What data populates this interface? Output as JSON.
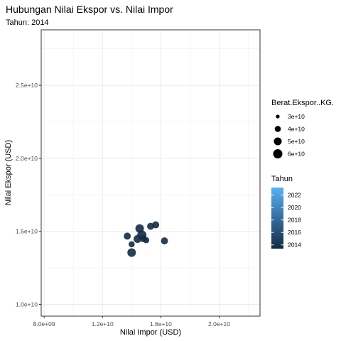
{
  "chart_data": {
    "type": "scatter",
    "title": "Hubungan Nilai Ekspor vs. Nilai Impor",
    "subtitle": "Tahun: 2014",
    "xlabel": "Nilai Impor (USD)",
    "ylabel": "Nilai Ekspor (USD)",
    "xlim": [
      7800000000.0,
      22800000000.0
    ],
    "ylim": [
      9200000000.0,
      28800000000.0
    ],
    "x_ticks": [
      8000000000.0,
      12000000000.0,
      16000000000.0,
      20000000000.0
    ],
    "x_tick_labels": [
      "8.0e+09",
      "1.2e+10",
      "1.6e+10",
      "2.0e+10"
    ],
    "y_ticks": [
      10000000000.0,
      15000000000.0,
      20000000000.0,
      25000000000.0
    ],
    "y_tick_labels": [
      "1.0e+10",
      "1.5e+10",
      "2.0e+10",
      "2.5e+10"
    ],
    "grid": true,
    "points": [
      {
        "x": 13700000000.0,
        "y": 14680000000.0,
        "size": 45000000000.0,
        "year": 2014
      },
      {
        "x": 14000000000.0,
        "y": 14120000000.0,
        "size": 40000000000.0,
        "year": 2014
      },
      {
        "x": 14000000000.0,
        "y": 13550000000.0,
        "size": 55000000000.0,
        "year": 2014
      },
      {
        "x": 14400000000.0,
        "y": 14480000000.0,
        "size": 50000000000.0,
        "year": 2014
      },
      {
        "x": 14550000000.0,
        "y": 15200000000.0,
        "size": 55000000000.0,
        "year": 2014
      },
      {
        "x": 14700000000.0,
        "y": 14750000000.0,
        "size": 60000000000.0,
        "year": 2014
      },
      {
        "x": 14800000000.0,
        "y": 14500000000.0,
        "size": 45000000000.0,
        "year": 2014
      },
      {
        "x": 15000000000.0,
        "y": 14400000000.0,
        "size": 40000000000.0,
        "year": 2014
      },
      {
        "x": 15300000000.0,
        "y": 15350000000.0,
        "size": 45000000000.0,
        "year": 2014
      },
      {
        "x": 15650000000.0,
        "y": 15450000000.0,
        "size": 45000000000.0,
        "year": 2014
      },
      {
        "x": 16250000000.0,
        "y": 14350000000.0,
        "size": 45000000000.0,
        "year": 2014
      }
    ],
    "size_legend": {
      "title": "Berat.Ekspor..KG.",
      "entries": [
        {
          "label": "3e+10",
          "value": 30000000000.0
        },
        {
          "label": "4e+10",
          "value": 40000000000.0
        },
        {
          "label": "5e+10",
          "value": 50000000000.0
        },
        {
          "label": "6e+10",
          "value": 60000000000.0
        }
      ]
    },
    "color_legend": {
      "title": "Tahun",
      "min": 2013.4,
      "max": 2023.2,
      "low_color": "#132b43",
      "high_color": "#56b1f7",
      "breaks": [
        {
          "label": "2022",
          "value": 2022
        },
        {
          "label": "2020",
          "value": 2020
        },
        {
          "label": "2018",
          "value": 2018
        },
        {
          "label": "2016",
          "value": 2016
        },
        {
          "label": "2014",
          "value": 2014
        }
      ]
    },
    "legend_position": "right",
    "point_color": "#132b43",
    "grid_color": "#ebebeb",
    "panel_border_color": "#333333"
  }
}
